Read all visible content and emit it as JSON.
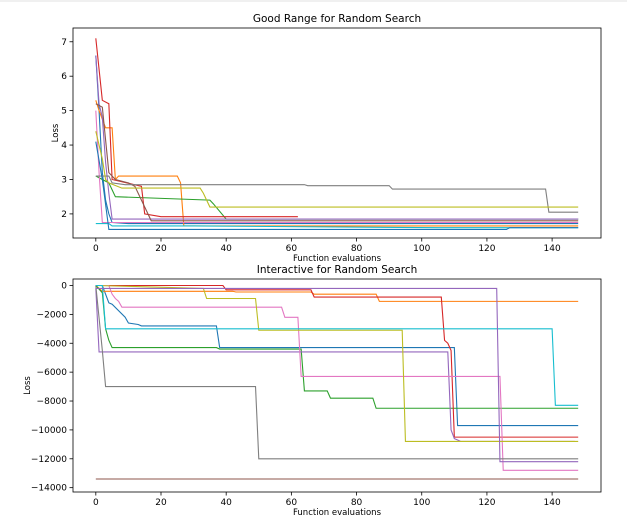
{
  "chart_data": [
    {
      "type": "line",
      "title": "Good Range for Random Search",
      "xlabel": "Function evaluations",
      "ylabel": "Loss",
      "xlim": [
        -7,
        155
      ],
      "ylim": [
        1.3,
        7.4
      ],
      "xticks": [
        0,
        20,
        40,
        60,
        80,
        100,
        120,
        140
      ],
      "yticks": [
        2,
        3,
        4,
        5,
        6,
        7
      ],
      "grid": false,
      "series": [
        {
          "color": "#1f77b4",
          "x": [
            0,
            1,
            2,
            3,
            4,
            5,
            10,
            148
          ],
          "y": [
            6.6,
            5.0,
            3.2,
            2.4,
            2.0,
            1.75,
            1.72,
            1.72
          ]
        },
        {
          "color": "#ff7f0e",
          "x": [
            0,
            1,
            3,
            5,
            6,
            7,
            25,
            26,
            27,
            148
          ],
          "y": [
            5.3,
            5.0,
            4.5,
            4.5,
            3.0,
            3.1,
            3.1,
            2.9,
            1.65,
            1.65
          ]
        },
        {
          "color": "#2ca02c",
          "x": [
            0,
            2,
            4,
            6,
            35,
            36,
            40,
            148
          ],
          "y": [
            3.1,
            3.0,
            2.9,
            2.5,
            2.4,
            2.3,
            1.85,
            1.85
          ]
        },
        {
          "color": "#d62728",
          "x": [
            0,
            1,
            2,
            4,
            5,
            14,
            15,
            20,
            62
          ],
          "y": [
            7.1,
            6.2,
            5.3,
            5.2,
            3.0,
            2.8,
            2.0,
            1.92,
            1.92
          ]
        },
        {
          "color": "#9467bd",
          "x": [
            0,
            1,
            2,
            3,
            4,
            5,
            148
          ],
          "y": [
            6.6,
            5.2,
            4.8,
            3.5,
            2.6,
            1.85,
            1.85
          ]
        },
        {
          "color": "#8c564b",
          "x": [
            0,
            2,
            4,
            6,
            10,
            12,
            15,
            17,
            20,
            148
          ],
          "y": [
            5.2,
            5.1,
            3.2,
            3.0,
            2.9,
            2.8,
            2.2,
            1.8,
            1.8,
            1.8
          ]
        },
        {
          "color": "#e377c2",
          "x": [
            0,
            1,
            2,
            148
          ],
          "y": [
            5.0,
            3.2,
            1.75,
            1.75
          ]
        },
        {
          "color": "#7f7f7f",
          "x": [
            0,
            4,
            5,
            9,
            64,
            65,
            90,
            91,
            138,
            139,
            148
          ],
          "y": [
            3.1,
            3.1,
            2.9,
            2.85,
            2.85,
            2.82,
            2.82,
            2.72,
            2.72,
            2.05,
            2.05
          ]
        },
        {
          "color": "#bcbd22",
          "x": [
            0,
            2,
            3,
            4,
            8,
            32,
            33,
            35,
            148
          ],
          "y": [
            4.4,
            3.6,
            3.0,
            2.9,
            2.75,
            2.75,
            2.6,
            2.2,
            2.2
          ]
        },
        {
          "color": "#17becf",
          "x": [
            0,
            4,
            5,
            30,
            105,
            148
          ],
          "y": [
            1.72,
            1.72,
            1.65,
            1.65,
            1.6,
            1.6
          ]
        },
        {
          "color": "#1f77b4",
          "x": [
            0,
            2,
            4,
            6,
            126,
            127,
            148
          ],
          "y": [
            4.1,
            3.0,
            1.55,
            1.55,
            1.55,
            1.6,
            1.6
          ]
        }
      ]
    },
    {
      "type": "line",
      "title": "Interactive for Random Search",
      "xlabel": "Function evaluations",
      "ylabel": "Loss",
      "xlim": [
        -7,
        155
      ],
      "ylim": [
        -14300,
        450
      ],
      "xticks": [
        0,
        20,
        40,
        60,
        80,
        100,
        120,
        140
      ],
      "yticks": [
        0,
        -2000,
        -4000,
        -6000,
        -8000,
        -10000,
        -12000,
        -14000
      ],
      "grid": false,
      "series": [
        {
          "color": "#1f77b4",
          "x": [
            0,
            2,
            4,
            5,
            9,
            10,
            13,
            14,
            37,
            38,
            110,
            111,
            148
          ],
          "y": [
            0,
            0,
            -1200,
            -1300,
            -2200,
            -2600,
            -2700,
            -2800,
            -2800,
            -4300,
            -4300,
            -9700,
            -9700
          ]
        },
        {
          "color": "#ff7f0e",
          "x": [
            0,
            2,
            42,
            43,
            66,
            67,
            86,
            87,
            148
          ],
          "y": [
            0,
            -400,
            -400,
            -450,
            -450,
            -600,
            -600,
            -1100,
            -1100
          ]
        },
        {
          "color": "#2ca02c",
          "x": [
            0,
            2,
            3,
            4,
            5,
            37,
            38,
            63,
            64,
            71,
            72,
            85,
            86,
            148
          ],
          "y": [
            0,
            -500,
            -3000,
            -3800,
            -4300,
            -4300,
            -4400,
            -4400,
            -7300,
            -7300,
            -7800,
            -7800,
            -8500,
            -8500
          ]
        },
        {
          "color": "#d62728",
          "x": [
            0,
            5,
            39,
            40,
            66,
            67,
            106,
            107,
            108,
            109,
            110,
            148
          ],
          "y": [
            0,
            0,
            0,
            -300,
            -300,
            -800,
            -800,
            -3800,
            -4000,
            -4500,
            -10500,
            -10500
          ]
        },
        {
          "color": "#9467bd",
          "x": [
            0,
            1,
            108,
            109,
            110,
            111,
            112,
            147
          ],
          "y": [
            -200,
            -4600,
            -4600,
            -10000,
            -10600,
            -10700,
            -10800,
            -10800
          ]
        },
        {
          "color": "#8c564b",
          "x": [
            0,
            148
          ],
          "y": [
            -13400,
            -13400
          ]
        },
        {
          "color": "#e377c2",
          "x": [
            0,
            4,
            5,
            6,
            7,
            8,
            57,
            58,
            62,
            63,
            124,
            125,
            148
          ],
          "y": [
            0,
            0,
            -600,
            -900,
            -1100,
            -1500,
            -1500,
            -2200,
            -2200,
            -6300,
            -6300,
            -12800,
            -12800
          ]
        },
        {
          "color": "#7f7f7f",
          "x": [
            0,
            2,
            3,
            49,
            50,
            51,
            148
          ],
          "y": [
            0,
            -4500,
            -7000,
            -7000,
            -12000,
            -12000,
            -12000
          ]
        },
        {
          "color": "#bcbd22",
          "x": [
            0,
            33,
            34,
            49,
            50,
            94,
            95,
            148
          ],
          "y": [
            0,
            -200,
            -900,
            -900,
            -3100,
            -3100,
            -10800,
            -10800
          ]
        },
        {
          "color": "#17becf",
          "x": [
            0,
            2,
            3,
            140,
            141,
            142,
            148
          ],
          "y": [
            0,
            0,
            -3000,
            -3000,
            -8300,
            -8300,
            -8300
          ]
        },
        {
          "color": "#9467bd",
          "x": [
            0,
            123,
            124,
            148
          ],
          "y": [
            -200,
            -200,
            -12200,
            -12200
          ]
        }
      ]
    }
  ]
}
